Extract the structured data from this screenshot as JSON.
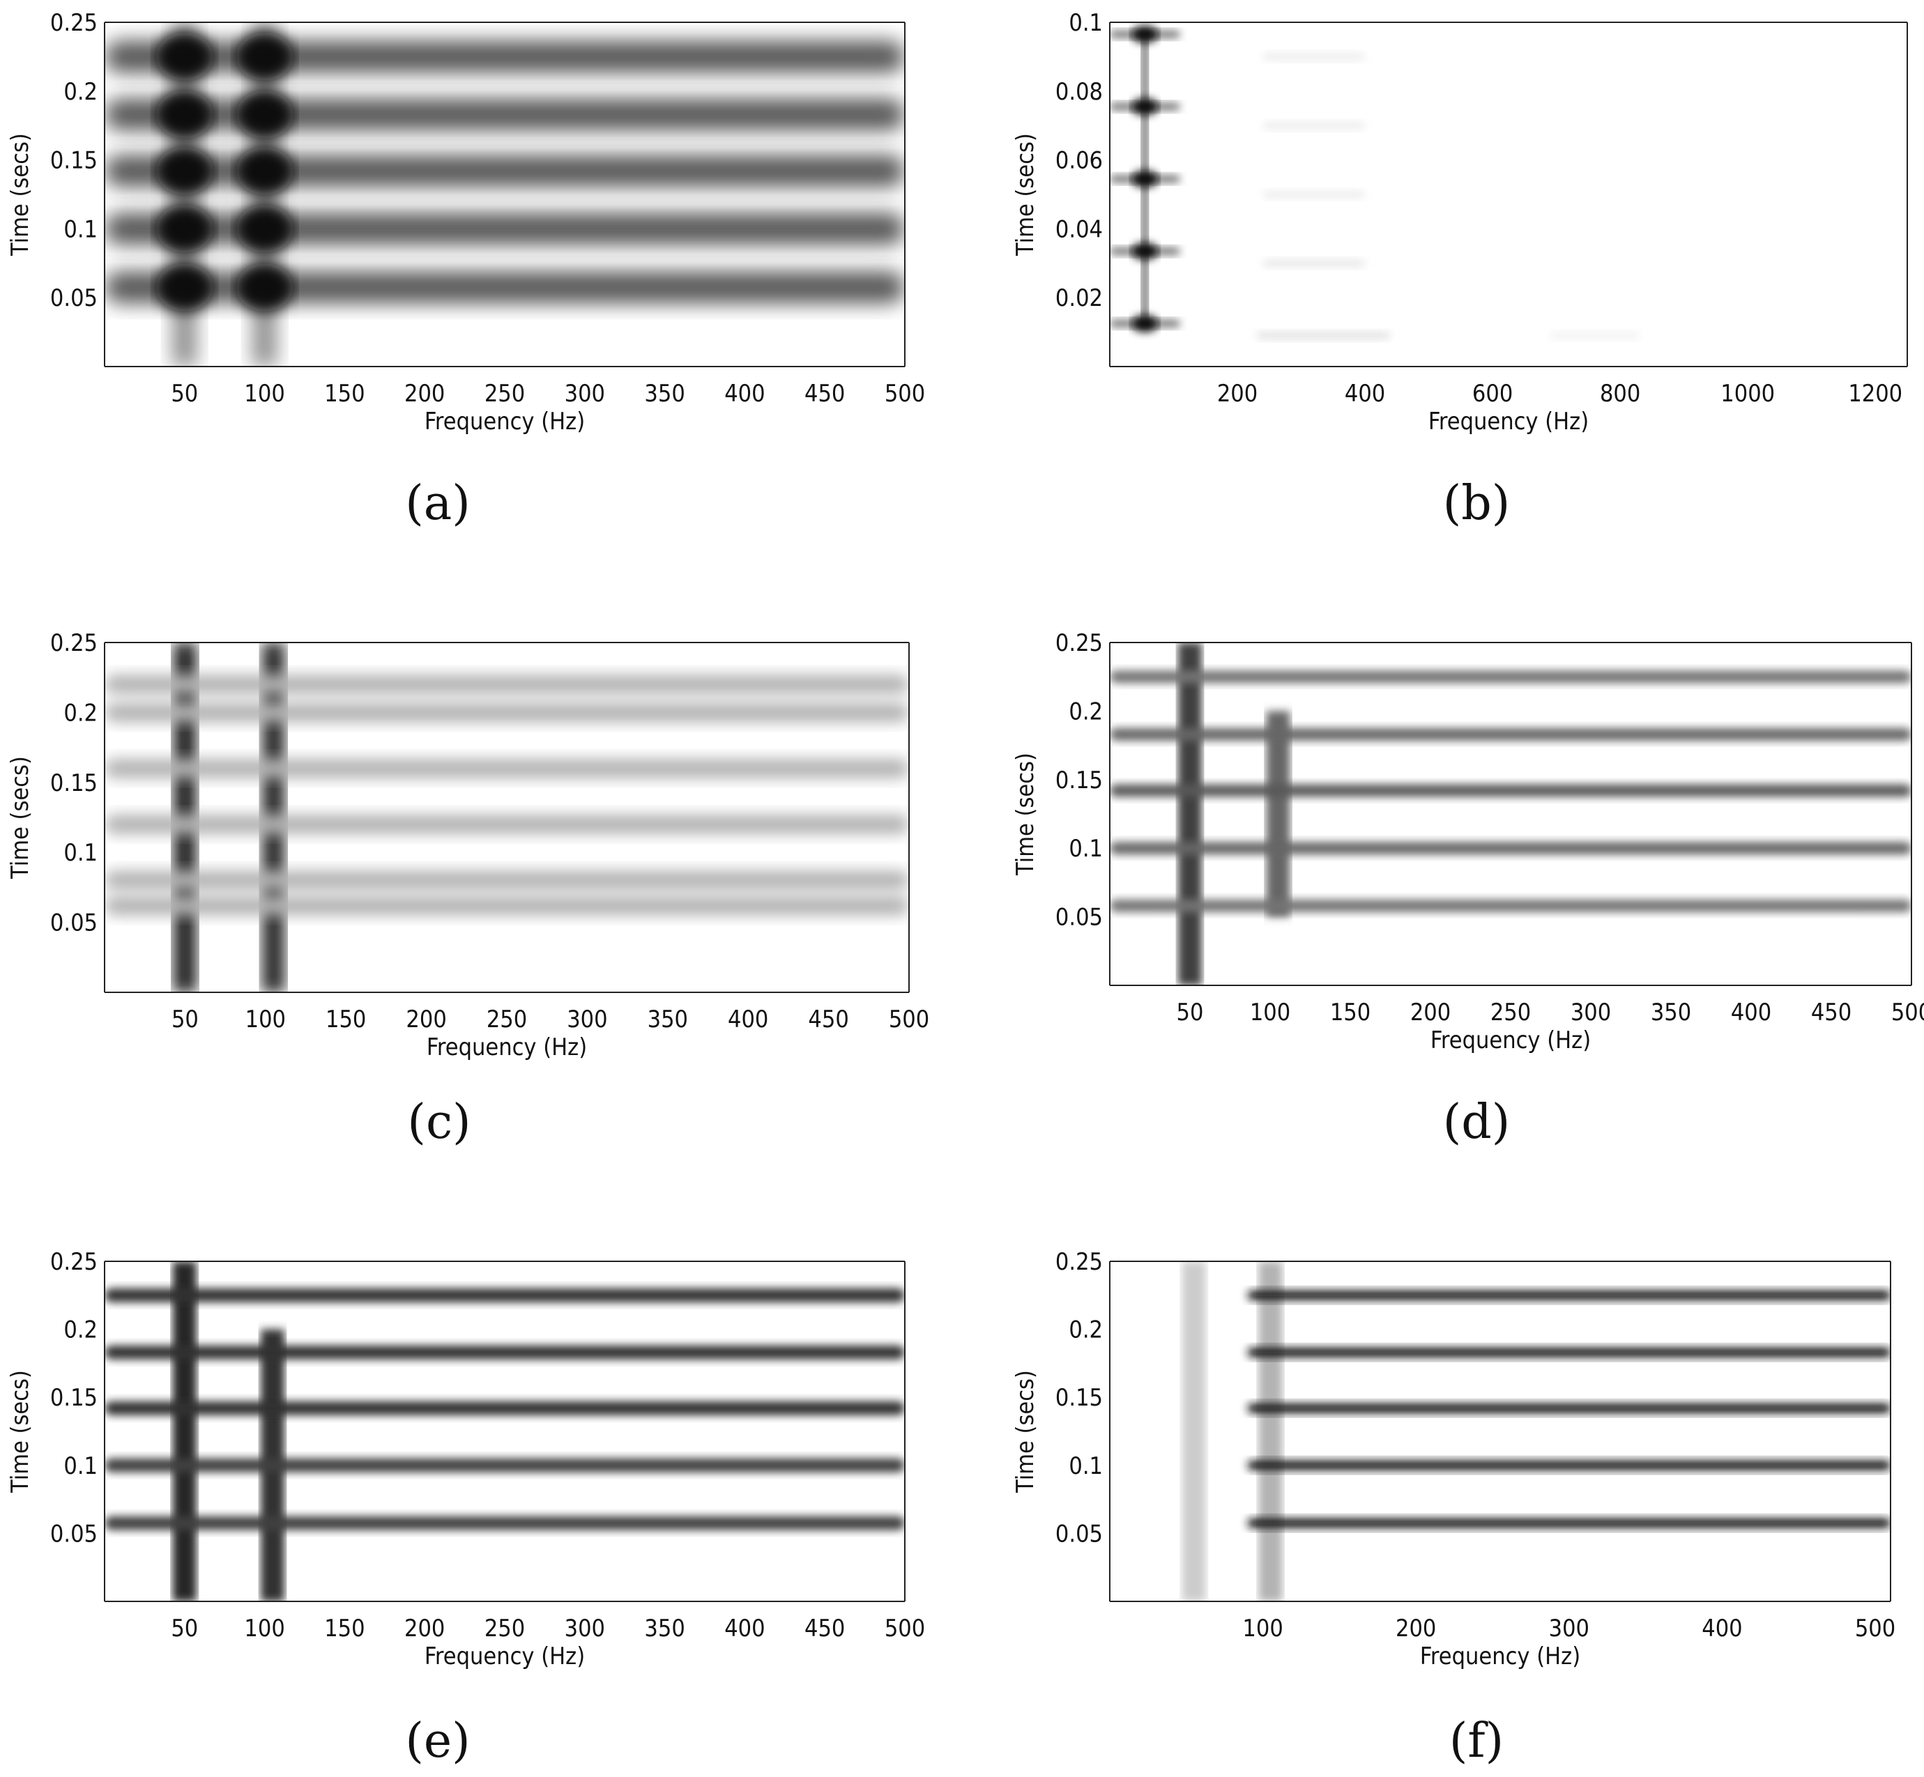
{
  "chart_data": [
    {
      "caption": "(a)",
      "type": "heatmap",
      "xlabel": "Frequency (Hz)",
      "ylabel": "Time (secs)",
      "xlim": [
        0,
        500
      ],
      "ylim": [
        0,
        0.25
      ],
      "xticks": [
        "50",
        "100",
        "150",
        "200",
        "250",
        "300",
        "350",
        "400",
        "450",
        "500"
      ],
      "xtick_values": [
        50,
        100,
        150,
        200,
        250,
        300,
        350,
        400,
        450,
        500
      ],
      "yticks": [
        "0.05",
        "0.1",
        "0.15",
        "0.2",
        "0.25"
      ],
      "ytick_values": [
        0.05,
        0.1,
        0.15,
        0.2,
        0.25
      ],
      "horizontal_bands": [
        {
          "t": 0.0575,
          "x_from": 0,
          "x_to": 500,
          "intensity": 0.65
        },
        {
          "t": 0.1,
          "x_from": 0,
          "x_to": 500,
          "intensity": 0.65
        },
        {
          "t": 0.142,
          "x_from": 0,
          "x_to": 500,
          "intensity": 0.65
        },
        {
          "t": 0.183,
          "x_from": 0,
          "x_to": 500,
          "intensity": 0.65
        },
        {
          "t": 0.225,
          "x_from": 0,
          "x_to": 500,
          "intensity": 0.65
        }
      ],
      "vertical_bands": [
        {
          "f": 50,
          "t_from": 0,
          "t_to": 0.25,
          "intensity": 0.45
        },
        {
          "f": 100,
          "t_from": 0,
          "t_to": 0.25,
          "intensity": 0.45
        }
      ],
      "dark_spots": [
        {
          "f": 50,
          "t": 0.0575
        },
        {
          "f": 50,
          "t": 0.1
        },
        {
          "f": 50,
          "t": 0.142
        },
        {
          "f": 50,
          "t": 0.183
        },
        {
          "f": 50,
          "t": 0.225
        },
        {
          "f": 100,
          "t": 0.0575
        },
        {
          "f": 100,
          "t": 0.1
        },
        {
          "f": 100,
          "t": 0.142
        },
        {
          "f": 100,
          "t": 0.183
        },
        {
          "f": 100,
          "t": 0.225
        }
      ]
    },
    {
      "caption": "(b)",
      "type": "heatmap",
      "xlabel": "Frequency (Hz)",
      "ylabel": "Time (secs)",
      "xlim": [
        0,
        1250
      ],
      "ylim": [
        0,
        0.1
      ],
      "xticks": [
        "200",
        "400",
        "600",
        "800",
        "1000",
        "1200"
      ],
      "xtick_values": [
        200,
        400,
        600,
        800,
        1000,
        1200
      ],
      "yticks": [
        "0.02",
        "0.04",
        "0.06",
        "0.08",
        "0.1"
      ],
      "ytick_values": [
        0.02,
        0.04,
        0.06,
        0.08,
        0.1
      ],
      "horizontal_bands": [
        {
          "t": 0.0125,
          "x_from": 0,
          "x_to": 110,
          "intensity": 0.6
        },
        {
          "t": 0.0335,
          "x_from": 0,
          "x_to": 110,
          "intensity": 0.6
        },
        {
          "t": 0.0545,
          "x_from": 0,
          "x_to": 110,
          "intensity": 0.6
        },
        {
          "t": 0.0755,
          "x_from": 0,
          "x_to": 110,
          "intensity": 0.6
        },
        {
          "t": 0.0965,
          "x_from": 0,
          "x_to": 110,
          "intensity": 0.6
        },
        {
          "t": 0.009,
          "x_from": 230,
          "x_to": 440,
          "intensity": 0.12
        },
        {
          "t": 0.03,
          "x_from": 240,
          "x_to": 400,
          "intensity": 0.1
        },
        {
          "t": 0.05,
          "x_from": 240,
          "x_to": 400,
          "intensity": 0.08
        },
        {
          "t": 0.07,
          "x_from": 240,
          "x_to": 400,
          "intensity": 0.08
        },
        {
          "t": 0.09,
          "x_from": 240,
          "x_to": 400,
          "intensity": 0.08
        },
        {
          "t": 0.009,
          "x_from": 690,
          "x_to": 830,
          "intensity": 0.05
        }
      ],
      "vertical_bands": [
        {
          "f": 55,
          "t_from": 0.012,
          "t_to": 0.097,
          "intensity": 0.6
        }
      ],
      "dark_spots": [
        {
          "f": 55,
          "t": 0.0125
        },
        {
          "f": 55,
          "t": 0.0335
        },
        {
          "f": 55,
          "t": 0.0545
        },
        {
          "f": 55,
          "t": 0.0755
        },
        {
          "f": 55,
          "t": 0.0965
        }
      ]
    },
    {
      "caption": "(c)",
      "type": "heatmap",
      "xlabel": "Frequency (Hz)",
      "ylabel": "Time (secs)",
      "xlim": [
        0,
        500
      ],
      "ylim": [
        0,
        0.25
      ],
      "xticks": [
        "50",
        "100",
        "150",
        "200",
        "250",
        "300",
        "350",
        "400",
        "450",
        "500"
      ],
      "xtick_values": [
        50,
        100,
        150,
        200,
        250,
        300,
        350,
        400,
        450,
        500
      ],
      "yticks": [
        "0.05",
        "0.1",
        "0.15",
        "0.2",
        "0.25"
      ],
      "ytick_values": [
        0.05,
        0.1,
        0.15,
        0.2,
        0.25
      ],
      "horizontal_bands": [
        {
          "t": 0.062,
          "x_from": 0,
          "x_to": 500,
          "intensity": 0.3
        },
        {
          "t": 0.08,
          "x_from": 0,
          "x_to": 500,
          "intensity": 0.3
        },
        {
          "t": 0.12,
          "x_from": 0,
          "x_to": 500,
          "intensity": 0.3
        },
        {
          "t": 0.16,
          "x_from": 0,
          "x_to": 500,
          "intensity": 0.3
        },
        {
          "t": 0.2,
          "x_from": 0,
          "x_to": 500,
          "intensity": 0.3
        },
        {
          "t": 0.22,
          "x_from": 0,
          "x_to": 500,
          "intensity": 0.3
        }
      ],
      "vertical_bands": [
        {
          "f": 50,
          "t_from": 0,
          "t_to": 0.25,
          "intensity": 0.85
        },
        {
          "f": 105,
          "t_from": 0,
          "t_to": 0.25,
          "intensity": 0.8
        }
      ],
      "dark_spots": []
    },
    {
      "caption": "(d)",
      "type": "heatmap",
      "xlabel": "Frequency (Hz)",
      "ylabel": "Time (secs)",
      "xlim": [
        0,
        500
      ],
      "ylim": [
        0,
        0.25
      ],
      "xticks": [
        "50",
        "100",
        "150",
        "200",
        "250",
        "300",
        "350",
        "400",
        "450",
        "500"
      ],
      "xtick_values": [
        50,
        100,
        150,
        200,
        250,
        300,
        350,
        400,
        450,
        500
      ],
      "yticks": [
        "0.05",
        "0.1",
        "0.15",
        "0.2",
        "0.25"
      ],
      "ytick_values": [
        0.05,
        0.1,
        0.15,
        0.2,
        0.25
      ],
      "horizontal_bands": [
        {
          "t": 0.058,
          "x_from": 0,
          "x_to": 500,
          "intensity": 0.55
        },
        {
          "t": 0.1,
          "x_from": 0,
          "x_to": 500,
          "intensity": 0.6
        },
        {
          "t": 0.142,
          "x_from": 0,
          "x_to": 500,
          "intensity": 0.65
        },
        {
          "t": 0.183,
          "x_from": 0,
          "x_to": 500,
          "intensity": 0.6
        },
        {
          "t": 0.225,
          "x_from": 0,
          "x_to": 500,
          "intensity": 0.55
        }
      ],
      "vertical_bands": [
        {
          "f": 50,
          "t_from": 0,
          "t_to": 0.25,
          "intensity": 0.75
        },
        {
          "f": 105,
          "t_from": 0.05,
          "t_to": 0.2,
          "intensity": 0.6
        }
      ],
      "dark_spots": []
    },
    {
      "caption": "(e)",
      "type": "heatmap",
      "xlabel": "Frequency (Hz)",
      "ylabel": "Time (secs)",
      "xlim": [
        0,
        500
      ],
      "ylim": [
        0,
        0.25
      ],
      "xticks": [
        "50",
        "100",
        "150",
        "200",
        "250",
        "300",
        "350",
        "400",
        "450",
        "500"
      ],
      "xtick_values": [
        50,
        100,
        150,
        200,
        250,
        300,
        350,
        400,
        450,
        500
      ],
      "yticks": [
        "0.05",
        "0.1",
        "0.15",
        "0.2",
        "0.25"
      ],
      "ytick_values": [
        0.05,
        0.1,
        0.15,
        0.2,
        0.25
      ],
      "horizontal_bands": [
        {
          "t": 0.0575,
          "x_from": 0,
          "x_to": 500,
          "intensity": 0.75
        },
        {
          "t": 0.1,
          "x_from": 0,
          "x_to": 500,
          "intensity": 0.75
        },
        {
          "t": 0.142,
          "x_from": 0,
          "x_to": 500,
          "intensity": 0.8
        },
        {
          "t": 0.183,
          "x_from": 0,
          "x_to": 500,
          "intensity": 0.8
        },
        {
          "t": 0.225,
          "x_from": 0,
          "x_to": 500,
          "intensity": 0.8
        }
      ],
      "vertical_bands": [
        {
          "f": 50,
          "t_from": 0,
          "t_to": 0.25,
          "intensity": 0.85
        },
        {
          "f": 105,
          "t_from": 0,
          "t_to": 0.2,
          "intensity": 0.8
        }
      ],
      "dark_spots": []
    },
    {
      "caption": "(f)",
      "type": "heatmap",
      "xlabel": "Frequency (Hz)",
      "ylabel": "Time (secs)",
      "xlim": [
        0,
        510
      ],
      "ylim": [
        0,
        0.25
      ],
      "xticks": [
        "100",
        "200",
        "300",
        "400",
        "500"
      ],
      "xtick_values": [
        100,
        200,
        300,
        400,
        500
      ],
      "yticks": [
        "0.05",
        "0.1",
        "0.15",
        "0.2",
        "0.25"
      ],
      "ytick_values": [
        0.05,
        0.1,
        0.15,
        0.2,
        0.25
      ],
      "horizontal_bands": [
        {
          "t": 0.0575,
          "x_from": 90,
          "x_to": 510,
          "intensity": 0.9
        },
        {
          "t": 0.1,
          "x_from": 90,
          "x_to": 510,
          "intensity": 0.9
        },
        {
          "t": 0.142,
          "x_from": 90,
          "x_to": 510,
          "intensity": 0.9
        },
        {
          "t": 0.183,
          "x_from": 90,
          "x_to": 510,
          "intensity": 0.9
        },
        {
          "t": 0.225,
          "x_from": 90,
          "x_to": 510,
          "intensity": 0.9
        }
      ],
      "vertical_bands": [
        {
          "f": 55,
          "t_from": 0,
          "t_to": 0.25,
          "intensity": 0.2
        },
        {
          "f": 105,
          "t_from": 0,
          "t_to": 0.25,
          "intensity": 0.3
        }
      ],
      "dark_spots": []
    }
  ]
}
